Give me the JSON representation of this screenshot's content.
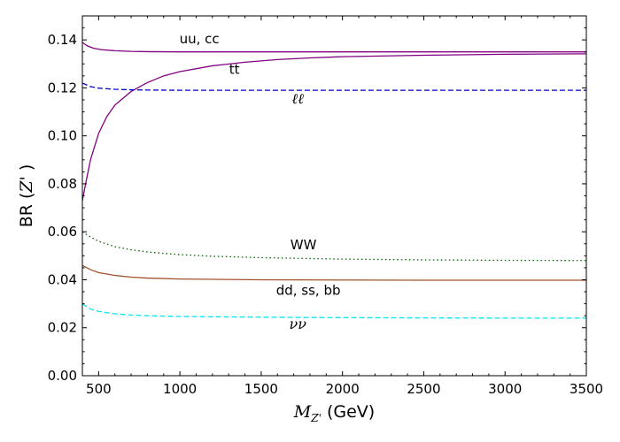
{
  "chart_data": {
    "type": "line",
    "title": "",
    "xlabel": "M_{Z'} (GeV)",
    "xlabel_main": "M",
    "xlabel_sub": "Z'",
    "xlabel_unit": " (GeV)",
    "ylabel": "BR (Z' )",
    "ylabel_pre": "BR (",
    "ylabel_var": "Z'",
    "ylabel_post": " )",
    "xlim": [
      400,
      3500
    ],
    "ylim": [
      0,
      0.15
    ],
    "xticks": [
      500,
      1000,
      1500,
      2000,
      2500,
      3000,
      3500
    ],
    "xtick_labels": [
      "500",
      "1000",
      "1500",
      "2000",
      "2500",
      "3000",
      "3500"
    ],
    "yticks": [
      0,
      0.02,
      0.04,
      0.06,
      0.08,
      0.1,
      0.12,
      0.14
    ],
    "ytick_labels": [
      "0.00",
      "0.02",
      "0.04",
      "0.06",
      "0.08",
      "0.10",
      "0.12",
      "0.14"
    ],
    "x_minor_step": 100,
    "y_minor_step": 0.005,
    "grid": false,
    "series": [
      {
        "name": "uu, cc",
        "color": "#800080",
        "dash": "solid",
        "x": [
          400,
          430,
          470,
          520,
          600,
          700,
          800,
          1000,
          1500,
          2000,
          2500,
          3000,
          3500
        ],
        "y": [
          0.139,
          0.1375,
          0.1365,
          0.1359,
          0.1355,
          0.1352,
          0.1351,
          0.135,
          0.135,
          0.135,
          0.135,
          0.135,
          0.135
        ]
      },
      {
        "name": "tt",
        "color": "#800080",
        "dash": "solid",
        "x": [
          400,
          420,
          450,
          500,
          550,
          600,
          700,
          800,
          900,
          1000,
          1200,
          1400,
          1600,
          1800,
          2000,
          2500,
          3000,
          3500
        ],
        "y": [
          0.073,
          0.08,
          0.09,
          0.101,
          0.108,
          0.1128,
          0.1185,
          0.1222,
          0.125,
          0.1268,
          0.1292,
          0.1307,
          0.1318,
          0.1325,
          0.133,
          0.1336,
          0.134,
          0.1342
        ]
      },
      {
        "name": "ℓℓ",
        "color": "#0000cc",
        "dash": "dashed",
        "x": [
          400,
          450,
          500,
          600,
          700,
          800,
          1000,
          1500,
          2000,
          2500,
          3000,
          3500
        ],
        "y": [
          0.122,
          0.1205,
          0.1199,
          0.1194,
          0.1192,
          0.1191,
          0.119,
          0.119,
          0.119,
          0.119,
          0.119,
          0.119
        ]
      },
      {
        "name": "WW",
        "color": "#006400",
        "dash": "dotted",
        "x": [
          400,
          450,
          500,
          600,
          700,
          800,
          900,
          1000,
          1200,
          1500,
          2000,
          2500,
          3000,
          3500
        ],
        "y": [
          0.06,
          0.0578,
          0.056,
          0.0538,
          0.0525,
          0.0516,
          0.051,
          0.0505,
          0.0498,
          0.0492,
          0.0486,
          0.0483,
          0.0481,
          0.048
        ]
      },
      {
        "name": "dd, ss, bb",
        "color": "#a0522d",
        "dash": "solid",
        "x": [
          400,
          450,
          500,
          600,
          700,
          800,
          1000,
          1500,
          2000,
          2500,
          3000,
          3500
        ],
        "y": [
          0.046,
          0.0442,
          0.043,
          0.0418,
          0.0411,
          0.0407,
          0.0403,
          0.04,
          0.0399,
          0.0398,
          0.0398,
          0.0398
        ]
      },
      {
        "name": "νν",
        "color": "#00e5ee",
        "dash": "dashed",
        "x": [
          400,
          450,
          500,
          600,
          700,
          800,
          1000,
          1500,
          2000,
          2500,
          3000,
          3500
        ],
        "y": [
          0.03,
          0.0278,
          0.0268,
          0.0258,
          0.0253,
          0.025,
          0.0247,
          0.0244,
          0.0242,
          0.0241,
          0.024,
          0.024
        ]
      }
    ],
    "annotations": [
      {
        "text": "uu, cc",
        "x": 1120,
        "y": 0.1385,
        "style": "normal"
      },
      {
        "text": "tt",
        "x": 1335,
        "y": 0.1258,
        "style": "normal"
      },
      {
        "text": "ℓℓ",
        "x": 1725,
        "y": 0.1135,
        "style": "italic"
      },
      {
        "text": "WW",
        "x": 1760,
        "y": 0.0527,
        "style": "normal"
      },
      {
        "text": "dd, ss, bb",
        "x": 1790,
        "y": 0.0338,
        "style": "normal"
      },
      {
        "text": "νν",
        "x": 1725,
        "y": 0.0195,
        "style": "italic"
      }
    ]
  }
}
